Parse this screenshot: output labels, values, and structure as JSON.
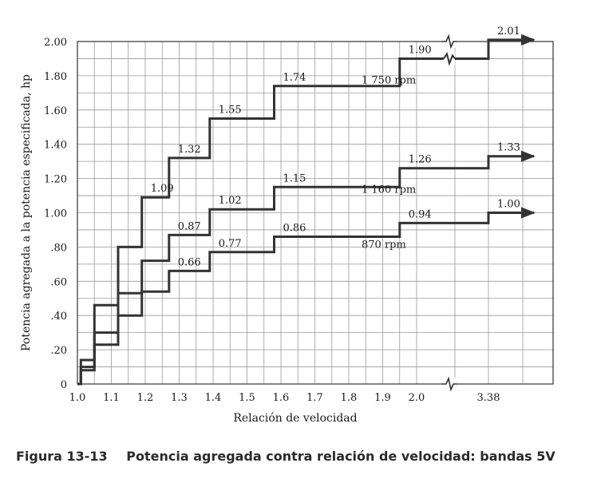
{
  "caption": {
    "number": "Figura 13-13",
    "text": "Potencia agregada contra relación de velocidad: bandas 5V"
  },
  "chart_data": {
    "type": "line",
    "step": true,
    "xlabel": "Relación de velocidad",
    "ylabel": "Potencia agregada a la potencia especificada, hp",
    "x_ticks": [
      "1.0",
      "1.1",
      "1.2",
      "1.3",
      "1.4",
      "1.5",
      "1.6",
      "1.7",
      "1.8",
      "1.9",
      "2.0",
      "3.38"
    ],
    "x_ticks_values": [
      1.0,
      1.1,
      1.2,
      1.3,
      1.4,
      1.5,
      1.6,
      1.7,
      1.8,
      1.9,
      2.0,
      3.38
    ],
    "x_axis_break": true,
    "y_ticks": [
      "0",
      ".20",
      ".40",
      ".60",
      ".80",
      "1.00",
      "1.20",
      "1.40",
      "1.60",
      "1.80",
      "2.00"
    ],
    "ylim": [
      0,
      2.0
    ],
    "grid": true,
    "series": [
      {
        "name": "1 750 rpm",
        "x": [
          1.01,
          1.05,
          1.12,
          1.19,
          1.27,
          1.39,
          1.58,
          1.95,
          3.38
        ],
        "y": [
          0.14,
          0.46,
          0.8,
          1.09,
          1.32,
          1.55,
          1.74,
          1.9,
          2.01
        ]
      },
      {
        "name": "1 160 rpm",
        "x": [
          1.01,
          1.05,
          1.12,
          1.19,
          1.27,
          1.39,
          1.58,
          1.95,
          3.38
        ],
        "y": [
          0.1,
          0.3,
          0.53,
          0.72,
          0.87,
          1.02,
          1.15,
          1.26,
          1.33
        ]
      },
      {
        "name": "870 rpm",
        "x": [
          1.01,
          1.05,
          1.12,
          1.19,
          1.27,
          1.39,
          1.58,
          1.95,
          3.38
        ],
        "y": [
          0.08,
          0.23,
          0.4,
          0.54,
          0.66,
          0.77,
          0.86,
          0.94,
          1.0
        ]
      }
    ],
    "annotations": [
      {
        "text": "1.09",
        "series": 0,
        "step": 3
      },
      {
        "text": "1.32",
        "series": 0,
        "step": 4
      },
      {
        "text": "1.55",
        "series": 0,
        "step": 5
      },
      {
        "text": "1.74",
        "series": 0,
        "step": 6
      },
      {
        "text": "1.90",
        "series": 0,
        "step": 7
      },
      {
        "text": "2.01",
        "series": 0,
        "step": 8
      },
      {
        "text": "0.87",
        "series": 1,
        "step": 4
      },
      {
        "text": "1.02",
        "series": 1,
        "step": 5
      },
      {
        "text": "1.15",
        "series": 1,
        "step": 6
      },
      {
        "text": "1.26",
        "series": 1,
        "step": 7
      },
      {
        "text": "1.33",
        "series": 1,
        "step": 8
      },
      {
        "text": "0.66",
        "series": 2,
        "step": 4
      },
      {
        "text": "0.77",
        "series": 2,
        "step": 5
      },
      {
        "text": "0.86",
        "series": 2,
        "step": 6
      },
      {
        "text": "0.94",
        "series": 2,
        "step": 7
      },
      {
        "text": "1.00",
        "series": 2,
        "step": 8
      }
    ]
  }
}
